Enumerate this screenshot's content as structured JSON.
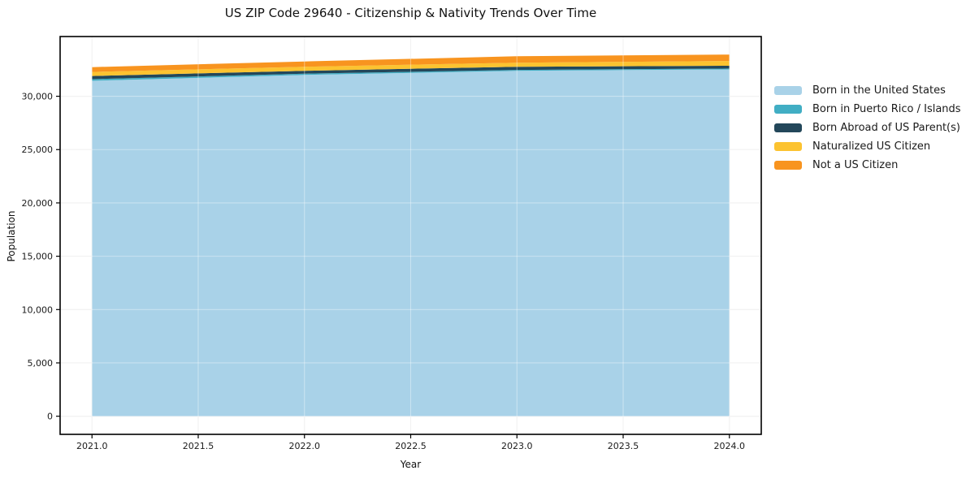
{
  "chart_data": {
    "type": "area",
    "stacked": true,
    "title": "US ZIP Code 29640 - Citizenship & Nativity Trends Over Time",
    "xlabel": "Year",
    "ylabel": "Population",
    "x": [
      2021,
      2022,
      2023,
      2024
    ],
    "series": [
      {
        "name": "Born in the United States",
        "color": "#a9d2e8",
        "values": [
          31450,
          32000,
          32380,
          32520
        ]
      },
      {
        "name": "Born in Puerto Rico / Islands",
        "color": "#41aec4",
        "values": [
          150,
          120,
          90,
          80
        ]
      },
      {
        "name": "Born Abroad of US Parent(s)",
        "color": "#23475a",
        "values": [
          300,
          270,
          300,
          260
        ]
      },
      {
        "name": "Naturalized US Citizen",
        "color": "#fcc330",
        "values": [
          380,
          380,
          380,
          450
        ]
      },
      {
        "name": "Not a US Citizen",
        "color": "#f8941f",
        "values": [
          450,
          490,
          600,
          600
        ]
      }
    ],
    "xlim": [
      2020.85,
      2024.15
    ],
    "ylim": [
      -1700,
      35600
    ],
    "xticks": [
      {
        "v": 2021.0,
        "label": "2021.0"
      },
      {
        "v": 2021.5,
        "label": "2021.5"
      },
      {
        "v": 2022.0,
        "label": "2022.0"
      },
      {
        "v": 2022.5,
        "label": "2022.5"
      },
      {
        "v": 2023.0,
        "label": "2023.0"
      },
      {
        "v": 2023.5,
        "label": "2023.5"
      },
      {
        "v": 2024.0,
        "label": "2024.0"
      }
    ],
    "yticks": [
      {
        "v": 0,
        "label": "0"
      },
      {
        "v": 5000,
        "label": "5,000"
      },
      {
        "v": 10000,
        "label": "10,000"
      },
      {
        "v": 15000,
        "label": "15,000"
      },
      {
        "v": 20000,
        "label": "20,000"
      },
      {
        "v": 25000,
        "label": "25,000"
      },
      {
        "v": 30000,
        "label": "30,000"
      }
    ],
    "grid": true,
    "legend_position": "right-outside"
  }
}
